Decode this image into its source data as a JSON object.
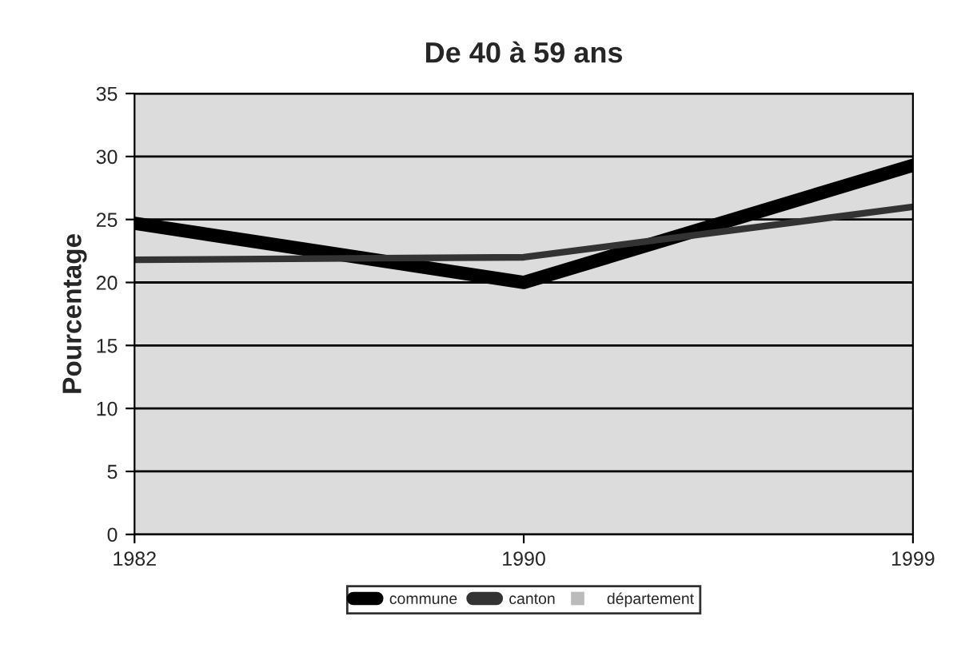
{
  "chart_data": {
    "type": "line",
    "title": "De 40 à 59 ans",
    "ylabel": "Pourcentage",
    "categories": [
      "1982",
      "1990",
      "1999"
    ],
    "series": [
      {
        "name": "commune",
        "color": "#000000",
        "values": [
          24.7,
          20,
          29.3
        ]
      },
      {
        "name": "canton",
        "color": "#333333",
        "values": [
          21.8,
          22,
          26
        ]
      },
      {
        "name": "département",
        "color": "#bbbbbb",
        "line_style": "dotted",
        "values": [
          null,
          null,
          null
        ]
      }
    ],
    "ylim": [
      0,
      35
    ],
    "yticks": [
      0,
      5,
      10,
      15,
      20,
      25,
      30,
      35
    ],
    "grid": "y",
    "legend": "bottom",
    "marker": "none",
    "line_style": "solid"
  }
}
